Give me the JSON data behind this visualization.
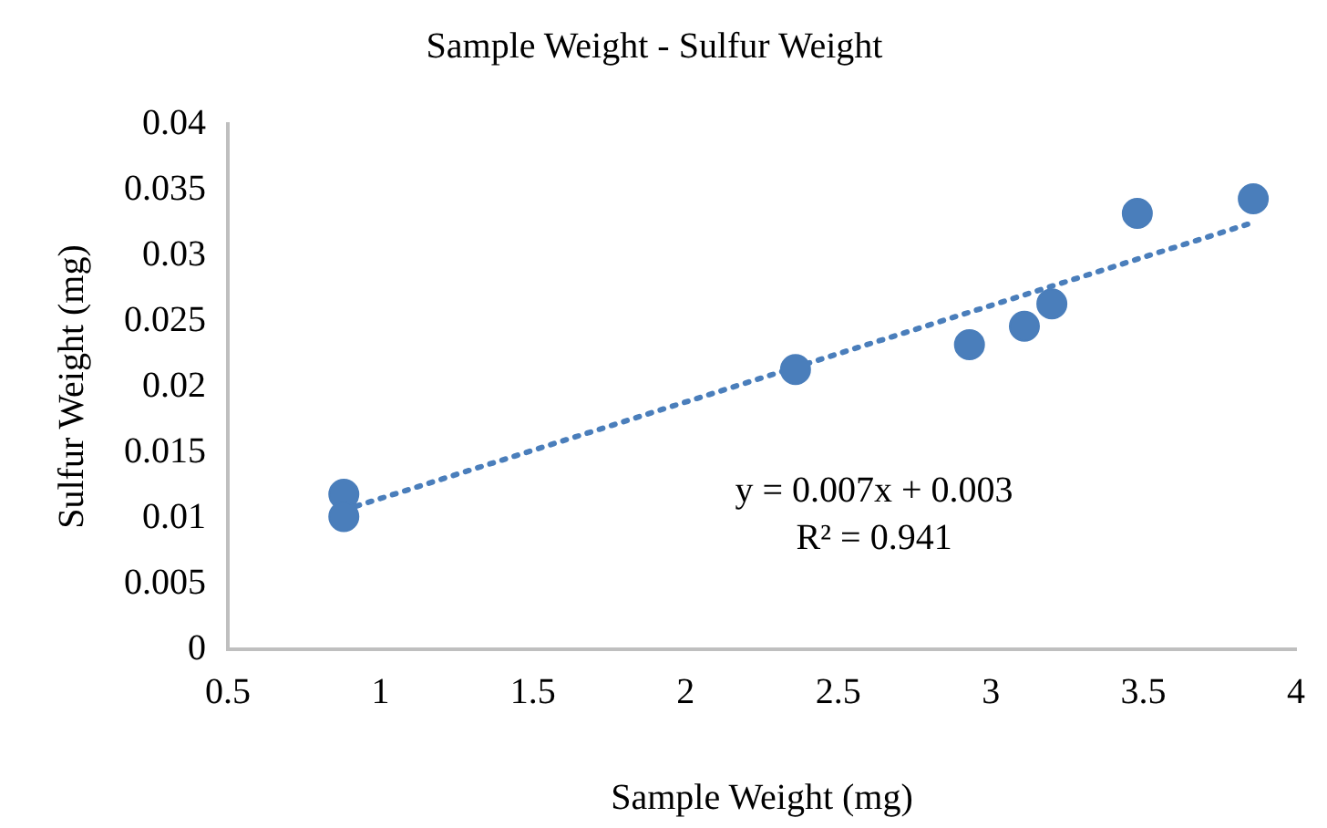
{
  "chart_data": {
    "type": "scatter",
    "title": "Sample Weight - Sulfur Weight",
    "xlabel": "Sample Weight (mg)",
    "ylabel": "Sulfur Weight (mg)",
    "series": [
      {
        "color": "#4a7ebb",
        "marker": "circle",
        "x": [
          0.88,
          0.88,
          2.36,
          2.93,
          3.11,
          3.2,
          3.48,
          3.86
        ],
        "values": [
          0.0118,
          0.0101,
          0.0213,
          0.0232,
          0.0246,
          0.0263,
          0.0332,
          0.0343
        ]
      },
      {
        "type": "line",
        "color": "#4a7ebb",
        "line_style": "dotted",
        "marker": "none",
        "x": [
          0.88,
          3.86
        ],
        "values": [
          0.0106,
          0.0325
        ]
      }
    ],
    "annotations": [
      "y = 0.007x + 0.003",
      "R² = 0.941"
    ],
    "xlim": [
      0.5,
      4
    ],
    "xticks": [
      0.5,
      1,
      1.5,
      2,
      2.5,
      3,
      3.5,
      4
    ],
    "ylim": [
      0,
      0.04
    ],
    "yticks": [
      0,
      0.005,
      0.01,
      0.015,
      0.02,
      0.025,
      0.03,
      0.035,
      0.04
    ],
    "grid": false,
    "legend": false
  }
}
